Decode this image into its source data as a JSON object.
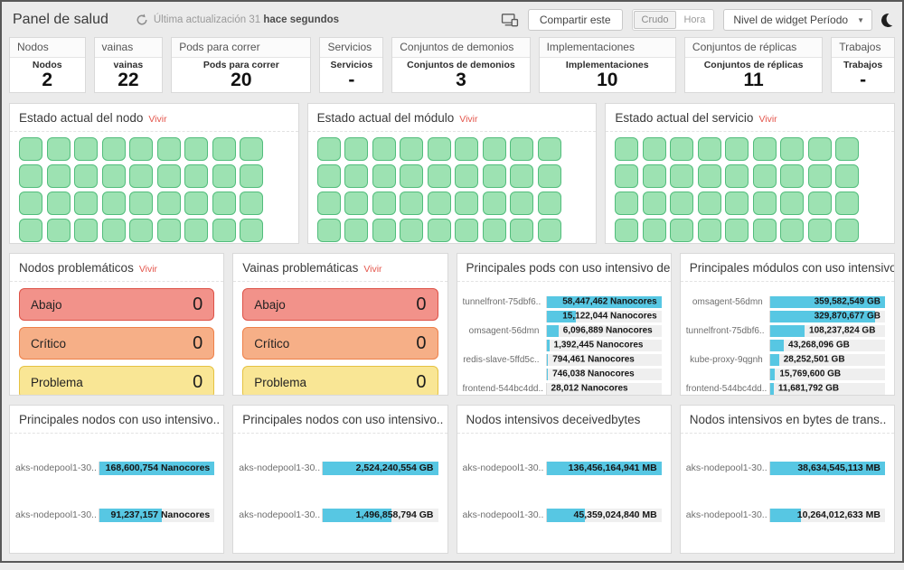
{
  "header": {
    "title": "Panel de salud",
    "last_update_prefix": "Última actualización 31",
    "last_update_bold": "hace segundos",
    "share_button": "Compartir este",
    "toggle": {
      "raw": "Crudo",
      "time": "Hora"
    },
    "period_dropdown": "Nivel de widget Período",
    "icons": [
      "refresh-icon",
      "devices-icon",
      "moon-icon",
      "chevron-down-icon"
    ]
  },
  "stats": [
    {
      "header": "Nodos",
      "label": "Nodos",
      "value": "2"
    },
    {
      "header": "vainas",
      "label": "vainas",
      "value": "22"
    },
    {
      "header": "Pods para correr",
      "label": "Pods para correr",
      "value": "20"
    },
    {
      "header": "Servicios",
      "label": "Servicios",
      "value": "-"
    },
    {
      "header": "Conjuntos de demonios",
      "label": "Conjuntos de demonios",
      "value": "3"
    },
    {
      "header": "Implementaciones",
      "label": "Implementaciones",
      "value": "10"
    },
    {
      "header": "Conjuntos de réplicas",
      "label": "Conjuntos de réplicas",
      "value": "11"
    },
    {
      "header": "Trabajos",
      "label": "Trabajos",
      "value": "-"
    }
  ],
  "status_panels": [
    {
      "title": "Estado actual del nodo",
      "live": "Vivir",
      "squares": 42
    },
    {
      "title": "Estado actual del módulo",
      "live": "Vivir",
      "squares": 42
    },
    {
      "title": "Estado actual del servicio",
      "live": "Vivir",
      "squares": 42
    }
  ],
  "square_colors": {
    "fill": "#9de2b2",
    "border": "#52bd7c"
  },
  "problem_panels": [
    {
      "title": "Nodos problemáticos",
      "live": "Vivir"
    },
    {
      "title": "Vainas problemáticas",
      "live": "Vivir"
    }
  ],
  "problem_rows": [
    {
      "label": "Abajo",
      "value": "0",
      "bg": "#f2928a",
      "border": "#dd5247"
    },
    {
      "label": "Crítico",
      "value": "0",
      "bg": "#f6af87",
      "border": "#ee8049"
    },
    {
      "label": "Problema",
      "value": "0",
      "bg": "#f9e695",
      "border": "#e5c242"
    }
  ],
  "theme": {
    "bar_color": "#57c7e3",
    "track_color": "#efefef",
    "live_color": "#e4574d"
  },
  "chart_data": [
    {
      "type": "bar",
      "orientation": "horizontal",
      "title": "Principales pods con uso intensivo de CPU",
      "unit": "Nanocores",
      "categories": [
        "tunnelfront-75dbf6..",
        "",
        "omsagent-56dmn",
        "",
        "redis-slave-5ffd5c..",
        "",
        "frontend-544bc4dd.."
      ],
      "values": [
        58447462,
        15122044,
        6096889,
        1392445,
        794461,
        746038,
        28012
      ],
      "value_labels": [
        "58,447,462 Nanocores",
        "15,122,044 Nanocores",
        "6,096,889 Nanocores",
        "1,392,445 Nanocores",
        "794,461 Nanocores",
        "746,038 Nanocores",
        "28,012 Nanocores"
      ]
    },
    {
      "type": "bar",
      "orientation": "horizontal",
      "title": "Principales módulos con uso intensivo de..",
      "unit": "GB",
      "categories": [
        "omsagent-56dmn",
        "",
        "tunnelfront-75dbf6..",
        "",
        "kube-proxy-9qgnh",
        "",
        "frontend-544bc4dd.."
      ],
      "values": [
        359582549,
        329870677,
        108237824,
        43268096,
        28252501,
        15769600,
        11681792
      ],
      "value_labels": [
        "359,582,549 GB",
        "329,870,677 GB",
        "108,237,824 GB",
        "43,268,096 GB",
        "28,252,501 GB",
        "15,769,600 GB",
        "11,681,792 GB"
      ]
    },
    {
      "type": "bar",
      "orientation": "horizontal",
      "title": "Principales nodos con uso intensivo..",
      "unit": "Nanocores",
      "categories": [
        "aks-nodepool1-30..",
        "aks-nodepool1-30.."
      ],
      "values": [
        168600754,
        91237157
      ],
      "value_labels": [
        "168,600,754 Nanocores",
        "91,237,157 Nanocores"
      ]
    },
    {
      "type": "bar",
      "orientation": "horizontal",
      "title": "Principales nodos con uso intensivo..",
      "unit": "GB",
      "categories": [
        "aks-nodepool1-30..",
        "aks-nodepool1-30.."
      ],
      "values": [
        2524240554,
        1496858794
      ],
      "value_labels": [
        "2,524,240,554 GB",
        "1,496,858,794 GB"
      ]
    },
    {
      "type": "bar",
      "orientation": "horizontal",
      "title": "Nodos intensivos deceivedbytes",
      "unit": "MB",
      "categories": [
        "aks-nodepool1-30..",
        "aks-nodepool1-30.."
      ],
      "values": [
        136456164941,
        45359024840
      ],
      "value_labels": [
        "136,456,164,941 MB",
        "45,359,024,840 MB"
      ]
    },
    {
      "type": "bar",
      "orientation": "horizontal",
      "title": "Nodos intensivos en bytes de trans..",
      "unit": "MB",
      "categories": [
        "aks-nodepool1-30..",
        "aks-nodepool1-30.."
      ],
      "values": [
        38634545113,
        10264012633
      ],
      "value_labels": [
        "38,634,545,113 MB",
        "10,264,012,633 MB"
      ]
    }
  ]
}
